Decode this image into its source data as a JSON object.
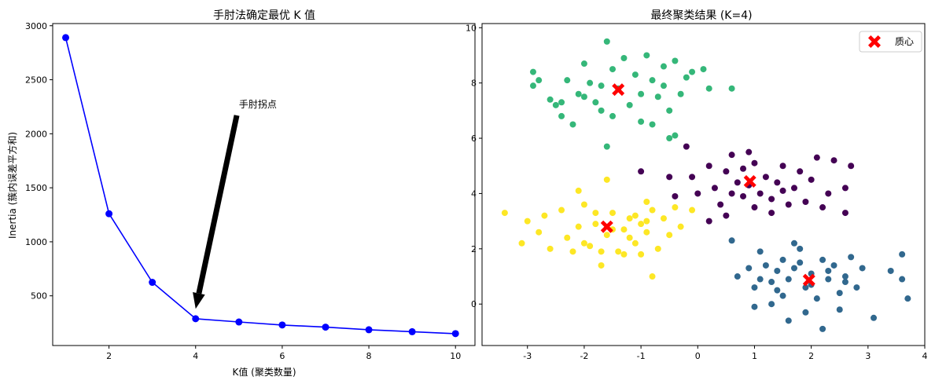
{
  "chart_data": [
    {
      "type": "line",
      "title": "手肘法确定最优 K 值",
      "xlabel": "K值 (聚类数量)",
      "ylabel": "Inertia (簇内误差平方和)",
      "xlim": [
        0.7,
        10.45
      ],
      "ylim": [
        40,
        3020
      ],
      "xticks": [
        2,
        4,
        6,
        8,
        10
      ],
      "yticks": [
        500,
        1000,
        1500,
        2000,
        2500,
        3000
      ],
      "grid": false,
      "series": [
        {
          "color": "#0000ff",
          "marker": "circle",
          "x": [
            1,
            2,
            3,
            4,
            5,
            6,
            7,
            8,
            9,
            10
          ],
          "y": [
            2890,
            1260,
            625,
            288,
            258,
            230,
            210,
            186,
            168,
            150
          ]
        }
      ],
      "annotations": [
        {
          "text": "手肘拐点",
          "text_xy": [
            5.0,
            2270
          ],
          "arrow_from": [
            4.95,
            2170
          ],
          "arrow_to": [
            4.0,
            380
          ],
          "color": "#000000"
        }
      ]
    },
    {
      "type": "scatter",
      "title": "最终聚类结果 (K=4)",
      "xlim": [
        -3.8,
        4.0
      ],
      "ylim": [
        -1.5,
        10.15
      ],
      "xticks": [
        -3,
        -2,
        -1,
        0,
        1,
        2,
        3,
        4
      ],
      "yticks": [
        0,
        2,
        4,
        6,
        8,
        10
      ],
      "grid": false,
      "legend": {
        "placement": "top-right",
        "entries": [
          {
            "label": "质心",
            "color": "#ff0000",
            "marker": "x-filled"
          }
        ]
      },
      "clusters": [
        {
          "color": "#440154",
          "points": [
            [
              -0.2,
              5.7
            ],
            [
              -0.1,
              4.6
            ],
            [
              0.2,
              5.0
            ],
            [
              0.3,
              4.2
            ],
            [
              0.5,
              4.8
            ],
            [
              0.6,
              4.0
            ],
            [
              0.7,
              4.4
            ],
            [
              0.8,
              4.9
            ],
            [
              0.9,
              4.3
            ],
            [
              1.0,
              5.1
            ],
            [
              1.1,
              4.0
            ],
            [
              1.2,
              4.6
            ],
            [
              1.3,
              3.8
            ],
            [
              1.4,
              4.4
            ],
            [
              1.5,
              5.0
            ],
            [
              1.6,
              3.6
            ],
            [
              1.7,
              4.2
            ],
            [
              1.8,
              4.8
            ],
            [
              0.4,
              3.6
            ],
            [
              0.5,
              3.2
            ],
            [
              0.8,
              3.9
            ],
            [
              1.0,
              3.5
            ],
            [
              1.3,
              3.3
            ],
            [
              2.0,
              4.5
            ],
            [
              2.1,
              5.3
            ],
            [
              2.3,
              4.0
            ],
            [
              2.4,
              5.2
            ],
            [
              2.6,
              3.3
            ],
            [
              2.7,
              5.0
            ],
            [
              -0.4,
              3.9
            ],
            [
              -0.5,
              4.6
            ],
            [
              -1.0,
              4.8
            ],
            [
              0.0,
              4.0
            ],
            [
              0.2,
              3.0
            ],
            [
              0.6,
              5.4
            ],
            [
              1.9,
              3.7
            ],
            [
              2.2,
              3.5
            ],
            [
              2.6,
              4.2
            ],
            [
              1.5,
              4.1
            ],
            [
              0.9,
              5.5
            ]
          ]
        },
        {
          "color": "#31688e",
          "points": [
            [
              0.6,
              2.3
            ],
            [
              0.7,
              1.0
            ],
            [
              0.9,
              1.3
            ],
            [
              1.0,
              0.6
            ],
            [
              1.1,
              1.9
            ],
            [
              1.2,
              1.4
            ],
            [
              1.3,
              0.8
            ],
            [
              1.4,
              1.2
            ],
            [
              1.5,
              0.3
            ],
            [
              1.6,
              0.9
            ],
            [
              1.7,
              2.2
            ],
            [
              1.8,
              1.5
            ],
            [
              1.9,
              0.6
            ],
            [
              2.0,
              1.1
            ],
            [
              2.1,
              0.2
            ],
            [
              2.2,
              1.6
            ],
            [
              2.3,
              0.9
            ],
            [
              2.4,
              1.4
            ],
            [
              2.5,
              -0.2
            ],
            [
              2.6,
              1.0
            ],
            [
              2.7,
              1.7
            ],
            [
              2.8,
              0.6
            ],
            [
              2.9,
              1.3
            ],
            [
              3.1,
              -0.5
            ],
            [
              3.4,
              1.2
            ],
            [
              3.6,
              1.8
            ],
            [
              3.6,
              0.9
            ],
            [
              3.7,
              0.2
            ],
            [
              1.0,
              -0.1
            ],
            [
              1.3,
              0.0
            ],
            [
              1.6,
              -0.6
            ],
            [
              1.9,
              -0.3
            ],
            [
              2.2,
              -0.9
            ],
            [
              2.5,
              0.4
            ],
            [
              1.1,
              0.9
            ],
            [
              1.4,
              0.5
            ],
            [
              1.7,
              1.3
            ],
            [
              2.0,
              0.7
            ],
            [
              2.3,
              1.2
            ],
            [
              2.6,
              0.8
            ],
            [
              1.8,
              2.0
            ],
            [
              1.5,
              1.6
            ]
          ]
        },
        {
          "color": "#35b779",
          "points": [
            [
              -2.9,
              8.4
            ],
            [
              -2.9,
              7.9
            ],
            [
              -2.8,
              8.1
            ],
            [
              -2.6,
              7.4
            ],
            [
              -2.5,
              7.2
            ],
            [
              -2.4,
              6.8
            ],
            [
              -2.3,
              8.1
            ],
            [
              -2.2,
              6.5
            ],
            [
              -2.1,
              7.6
            ],
            [
              -2.0,
              8.7
            ],
            [
              -1.9,
              8.0
            ],
            [
              -1.8,
              7.3
            ],
            [
              -1.7,
              7.0
            ],
            [
              -1.6,
              9.5
            ],
            [
              -1.5,
              8.5
            ],
            [
              -1.4,
              7.8
            ],
            [
              -1.3,
              8.9
            ],
            [
              -1.2,
              7.2
            ],
            [
              -1.1,
              8.3
            ],
            [
              -1.0,
              7.6
            ],
            [
              -0.9,
              9.0
            ],
            [
              -0.8,
              8.1
            ],
            [
              -0.7,
              7.5
            ],
            [
              -0.6,
              8.6
            ],
            [
              -0.5,
              7.0
            ],
            [
              -0.4,
              8.8
            ],
            [
              -0.3,
              7.6
            ],
            [
              -0.2,
              8.2
            ],
            [
              -0.1,
              8.4
            ],
            [
              0.1,
              8.5
            ],
            [
              0.2,
              7.8
            ],
            [
              0.6,
              7.8
            ],
            [
              -1.7,
              7.9
            ],
            [
              -2.0,
              7.5
            ],
            [
              -1.5,
              6.8
            ],
            [
              -1.0,
              6.6
            ],
            [
              -0.8,
              6.5
            ],
            [
              -0.6,
              7.9
            ],
            [
              -1.6,
              5.7
            ],
            [
              -0.5,
              6.0
            ],
            [
              -0.4,
              6.1
            ],
            [
              -2.4,
              7.3
            ]
          ]
        },
        {
          "color": "#fde725",
          "points": [
            [
              -3.4,
              3.3
            ],
            [
              -3.1,
              2.2
            ],
            [
              -3.0,
              3.0
            ],
            [
              -2.8,
              2.6
            ],
            [
              -2.7,
              3.2
            ],
            [
              -2.4,
              3.4
            ],
            [
              -2.3,
              2.4
            ],
            [
              -2.2,
              1.9
            ],
            [
              -2.1,
              2.8
            ],
            [
              -2.0,
              3.6
            ],
            [
              -1.9,
              2.1
            ],
            [
              -1.8,
              2.9
            ],
            [
              -1.7,
              1.4
            ],
            [
              -1.6,
              2.5
            ],
            [
              -1.5,
              3.3
            ],
            [
              -1.4,
              1.9
            ],
            [
              -1.3,
              2.7
            ],
            [
              -1.2,
              3.1
            ],
            [
              -1.1,
              2.2
            ],
            [
              -1.0,
              2.9
            ],
            [
              -0.9,
              2.6
            ],
            [
              -0.8,
              3.4
            ],
            [
              -0.7,
              2.0
            ],
            [
              -0.6,
              3.1
            ],
            [
              -0.5,
              2.5
            ],
            [
              -0.4,
              3.5
            ],
            [
              -0.3,
              2.8
            ],
            [
              -0.1,
              3.4
            ],
            [
              -1.8,
              3.3
            ],
            [
              -2.0,
              2.2
            ],
            [
              -1.7,
              1.9
            ],
            [
              -1.5,
              2.7
            ],
            [
              -1.2,
              2.4
            ],
            [
              -1.0,
              1.8
            ],
            [
              -0.9,
              3.7
            ],
            [
              -0.8,
              1.0
            ],
            [
              -2.1,
              4.1
            ],
            [
              -1.6,
              4.5
            ],
            [
              -1.3,
              1.8
            ],
            [
              -2.6,
              2.0
            ],
            [
              -0.9,
              3.0
            ],
            [
              -1.1,
              3.2
            ]
          ]
        }
      ],
      "centroids": {
        "label": "质心",
        "color": "#ff0000",
        "points": [
          [
            0.92,
            4.44
          ],
          [
            1.96,
            0.87
          ],
          [
            -1.4,
            7.76
          ],
          [
            -1.6,
            2.8
          ]
        ]
      }
    }
  ]
}
